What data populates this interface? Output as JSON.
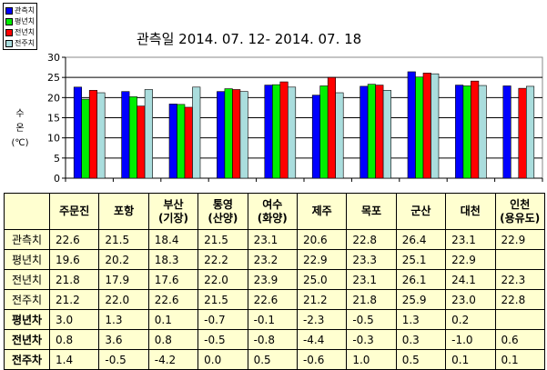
{
  "chart_data": {
    "type": "bar",
    "title": "관측일 2014. 07. 12-  2014. 07. 18",
    "ylabel": [
      "수",
      "온",
      "(℃)"
    ],
    "ylim": [
      0,
      30
    ],
    "yticks": [
      0,
      5,
      10,
      15,
      20,
      25,
      30
    ],
    "grid": true,
    "legend_position": "top-left",
    "categories": [
      "주문진",
      "포항",
      "부산\n(기장)",
      "통영\n(산양)",
      "여수\n(화양)",
      "제주",
      "목포",
      "군산",
      "대천",
      "인천\n(용유도)"
    ],
    "series": [
      {
        "name": "관측치",
        "color": "#0000ff",
        "values": [
          22.6,
          21.5,
          18.4,
          21.5,
          23.1,
          20.6,
          22.8,
          26.4,
          23.1,
          22.9
        ]
      },
      {
        "name": "평년치",
        "color": "#00ee00",
        "values": [
          19.6,
          20.2,
          18.3,
          22.2,
          23.2,
          22.9,
          23.3,
          25.1,
          22.9,
          null
        ]
      },
      {
        "name": "전년치",
        "color": "#ff0000",
        "values": [
          21.8,
          17.9,
          17.6,
          22.0,
          23.9,
          25.0,
          23.1,
          26.1,
          24.1,
          22.3
        ]
      },
      {
        "name": "전주치",
        "color": "#aadddd",
        "values": [
          21.2,
          22.0,
          22.6,
          21.5,
          22.6,
          21.2,
          21.8,
          25.9,
          23.0,
          22.8
        ]
      }
    ]
  },
  "table": {
    "header": [
      "",
      "주문진",
      "포항",
      "부산\n(기장)",
      "통영\n(산양)",
      "여수\n(화양)",
      "제주",
      "목포",
      "군산",
      "대천",
      "인천\n(용유도)"
    ],
    "rows": [
      {
        "label": "관측치",
        "bold": false,
        "values": [
          "22.6",
          "21.5",
          "18.4",
          "21.5",
          "23.1",
          "20.6",
          "22.8",
          "26.4",
          "23.1",
          "22.9"
        ]
      },
      {
        "label": "평년치",
        "bold": false,
        "values": [
          "19.6",
          "20.2",
          "18.3",
          "22.2",
          "23.2",
          "22.9",
          "23.3",
          "25.1",
          "22.9",
          ""
        ]
      },
      {
        "label": "전년치",
        "bold": false,
        "values": [
          "21.8",
          "17.9",
          "17.6",
          "22.0",
          "23.9",
          "25.0",
          "23.1",
          "26.1",
          "24.1",
          "22.3"
        ]
      },
      {
        "label": "전주치",
        "bold": false,
        "values": [
          "21.2",
          "22.0",
          "22.6",
          "21.5",
          "22.6",
          "21.2",
          "21.8",
          "25.9",
          "23.0",
          "22.8"
        ]
      },
      {
        "label": "평년차",
        "bold": true,
        "values": [
          "3.0",
          "1.3",
          "0.1",
          "-0.7",
          "-0.1",
          "-2.3",
          "-0.5",
          "1.3",
          "0.2",
          ""
        ]
      },
      {
        "label": "전년차",
        "bold": true,
        "values": [
          "0.8",
          "3.6",
          "0.8",
          "-0.5",
          "-0.8",
          "-4.4",
          "-0.3",
          "0.3",
          "-1.0",
          "0.6"
        ]
      },
      {
        "label": "전주차",
        "bold": true,
        "values": [
          "1.4",
          "-0.5",
          "-4.2",
          "0.0",
          "0.5",
          "-0.6",
          "1.0",
          "0.5",
          "0.1",
          "0.1"
        ]
      }
    ]
  }
}
